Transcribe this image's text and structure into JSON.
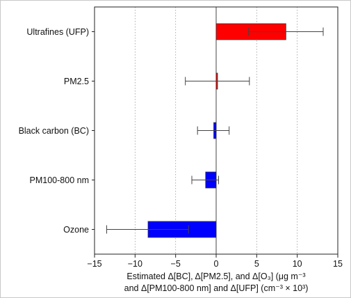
{
  "chart_data": {
    "type": "bar",
    "orientation": "horizontal",
    "categories": [
      "Ultrafines (UFP)",
      "PM2.5",
      "Black carbon (BC)",
      "PM100-800 nm",
      "Ozone"
    ],
    "values": [
      8.6,
      0.15,
      -0.3,
      -1.3,
      -8.4
    ],
    "error_low": [
      4.0,
      -3.8,
      -2.3,
      -3.0,
      -13.5
    ],
    "error_high": [
      13.2,
      4.1,
      1.6,
      0.3,
      -3.4
    ],
    "colors": [
      "#ff0000",
      "#ff0000",
      "#0000ff",
      "#0000ff",
      "#0000ff"
    ],
    "xlim": [
      -15,
      15
    ],
    "xticks": [
      -15,
      -10,
      -5,
      0,
      5,
      10,
      15
    ],
    "grid": "vertical dotted",
    "xlabel_line1": "Estimated Δ[BC], Δ[PM2.5], and Δ[O₃] (μg m⁻³",
    "xlabel_line2": "and Δ[PM100-800 nm] and Δ[UFP] (cm⁻³ × 10³)"
  }
}
